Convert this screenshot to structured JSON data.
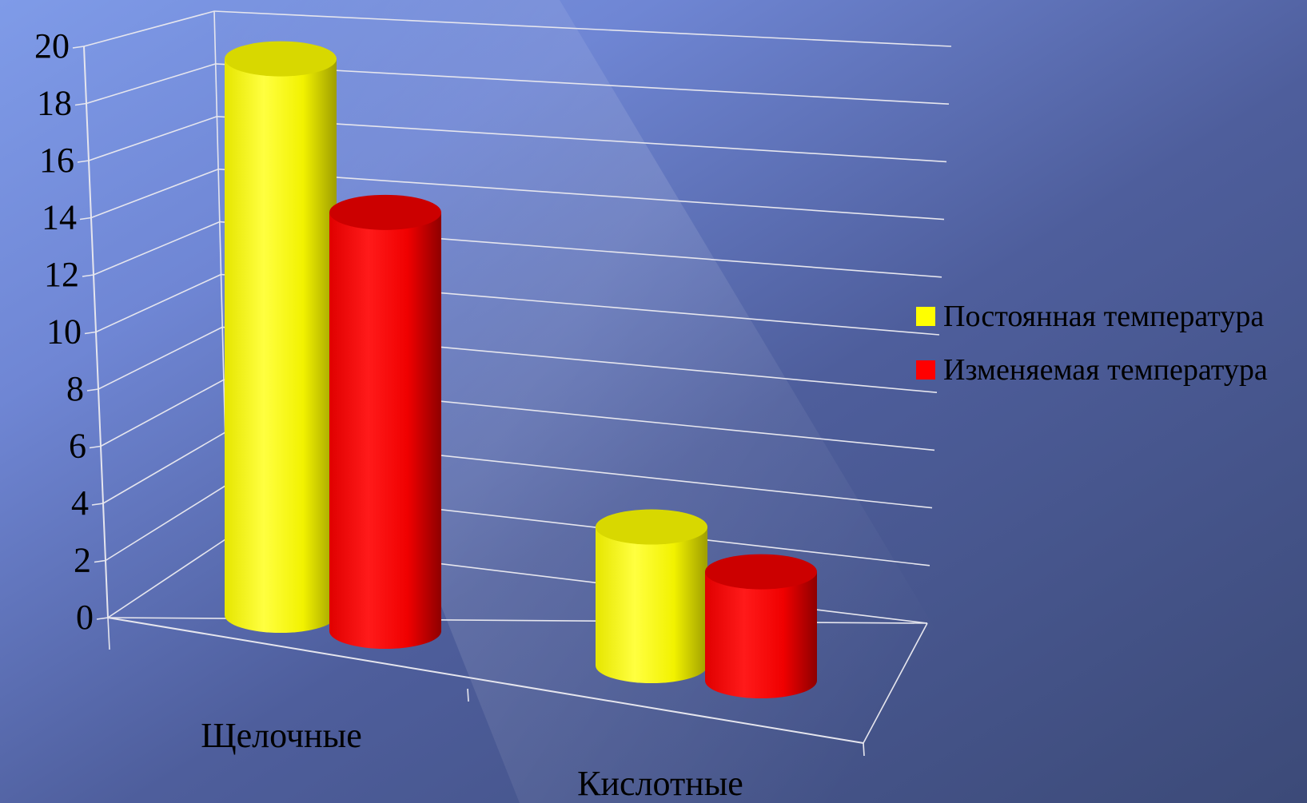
{
  "chart_data": {
    "type": "bar",
    "style": "3d-cylinder",
    "categories": [
      "Щелочные",
      "Кислотные"
    ],
    "series": [
      {
        "name": "Постоянная температура",
        "values": [
          19.7,
          4.9
        ],
        "color": "#FFFF00"
      },
      {
        "name": "Изменяемая температура",
        "values": [
          15.6,
          4.0
        ],
        "color": "#FF0000"
      }
    ],
    "y_ticks": [
      "0",
      "2",
      "4",
      "6",
      "8",
      "10",
      "12",
      "14",
      "16",
      "18",
      "20"
    ],
    "ylim": [
      0,
      20
    ],
    "grid": true,
    "legend_position": "right",
    "background": {
      "from": "#7F9BE8",
      "to": "#3C4A78"
    }
  }
}
